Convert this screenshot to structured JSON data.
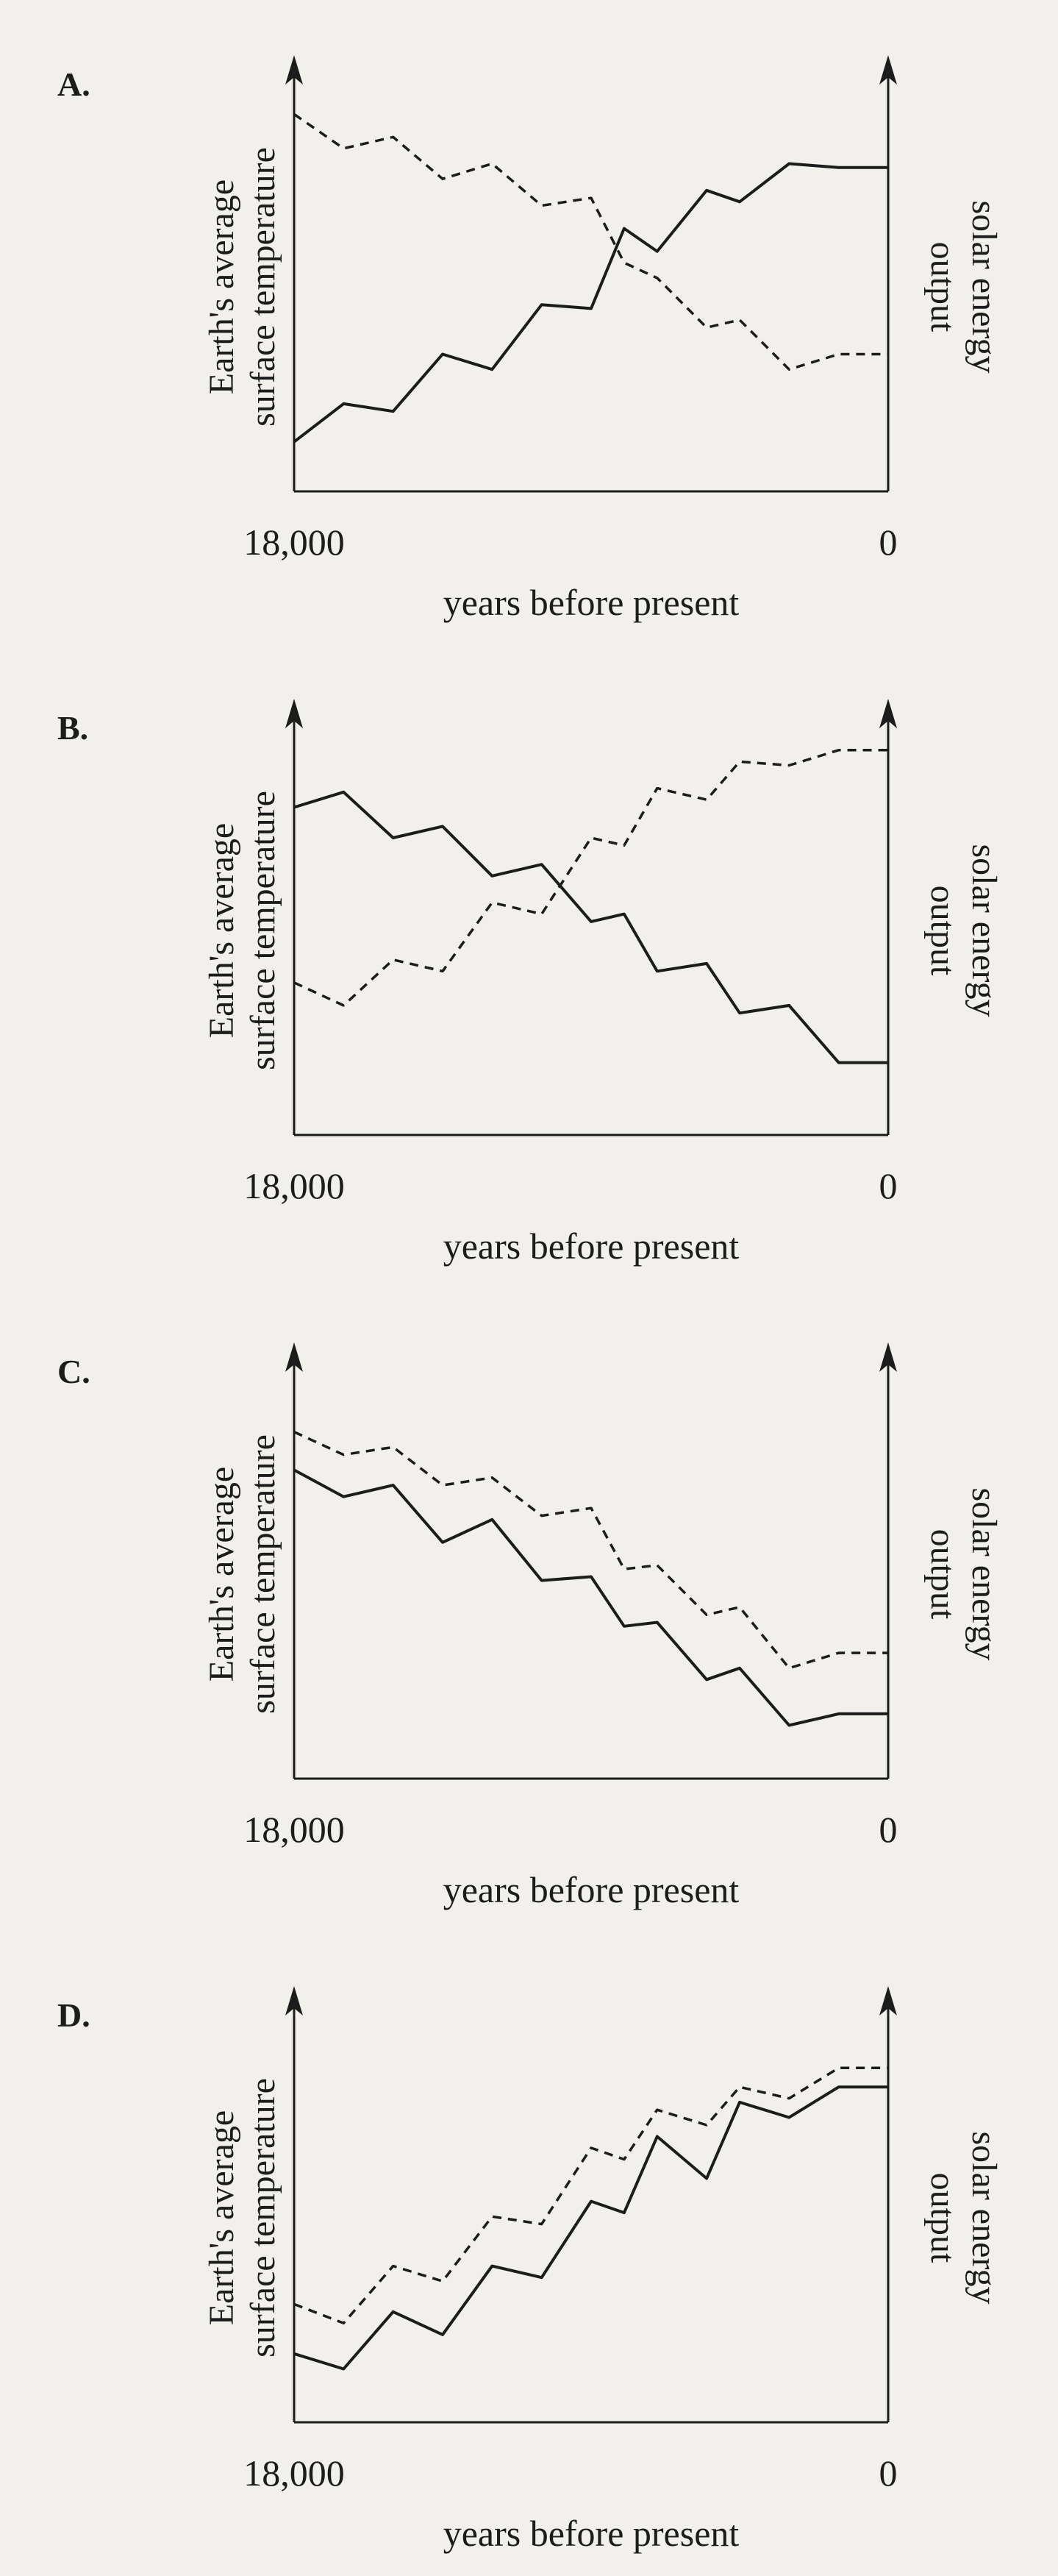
{
  "chart_data": [
    {
      "type": "line",
      "option_label": "A.",
      "ylabel_left": [
        "Earth's average",
        "surface temperature"
      ],
      "ylabel_right": [
        "solar energy",
        "output"
      ],
      "xlabel": "years before present",
      "x_tick_labels": [
        "18,000",
        "0"
      ],
      "x": [
        18000,
        16500,
        15000,
        13500,
        12000,
        10500,
        9000,
        8000,
        7000,
        5500,
        4500,
        3000,
        1500,
        0
      ],
      "xlim": [
        18000,
        0
      ],
      "ylim": [
        0,
        10
      ],
      "series": [
        {
          "axis": "left",
          "line_style": "solid",
          "values": [
            1.3,
            2.3,
            2.1,
            3.6,
            3.2,
            4.9,
            4.8,
            6.9,
            6.3,
            7.9,
            7.6,
            8.6,
            8.5,
            8.5
          ]
        },
        {
          "axis": "right",
          "line_style": "dashed",
          "values": [
            9.9,
            9.0,
            9.3,
            8.2,
            8.6,
            7.5,
            7.7,
            6.0,
            5.6,
            4.3,
            4.5,
            3.2,
            3.6,
            3.6
          ]
        }
      ]
    },
    {
      "type": "line",
      "option_label": "B.",
      "ylabel_left": [
        "Earth's average",
        "surface temperature"
      ],
      "ylabel_right": [
        "solar energy",
        "output"
      ],
      "xlabel": "years before present",
      "x_tick_labels": [
        "18,000",
        "0"
      ],
      "x": [
        18000,
        16500,
        15000,
        13500,
        12000,
        10500,
        9000,
        8000,
        7000,
        5500,
        4500,
        3000,
        1500,
        0
      ],
      "xlim": [
        18000,
        0
      ],
      "ylim": [
        0,
        10
      ],
      "series": [
        {
          "axis": "left",
          "line_style": "solid",
          "values": [
            8.6,
            9.0,
            7.8,
            8.1,
            6.8,
            7.1,
            5.6,
            5.8,
            4.3,
            4.5,
            3.2,
            3.4,
            1.9,
            1.9
          ]
        },
        {
          "axis": "right",
          "line_style": "dashed",
          "values": [
            4.0,
            3.4,
            4.6,
            4.3,
            6.1,
            5.8,
            7.8,
            7.6,
            9.1,
            8.8,
            9.8,
            9.7,
            10.1,
            10.1
          ]
        }
      ]
    },
    {
      "type": "line",
      "option_label": "C.",
      "ylabel_left": [
        "Earth's average",
        "surface temperature"
      ],
      "ylabel_right": [
        "solar energy",
        "output"
      ],
      "xlabel": "years before present",
      "x_tick_labels": [
        "18,000",
        "0"
      ],
      "x": [
        18000,
        16500,
        15000,
        13500,
        12000,
        10500,
        9000,
        8000,
        7000,
        5500,
        4500,
        3000,
        1500,
        0
      ],
      "xlim": [
        18000,
        0
      ],
      "ylim": [
        0,
        10
      ],
      "series": [
        {
          "axis": "left",
          "line_style": "solid",
          "values": [
            8.1,
            7.4,
            7.7,
            6.2,
            6.8,
            5.2,
            5.3,
            4.0,
            4.1,
            2.6,
            2.9,
            1.4,
            1.7,
            1.7
          ]
        },
        {
          "axis": "right",
          "line_style": "dashed",
          "values": [
            9.1,
            8.5,
            8.7,
            7.7,
            7.9,
            6.9,
            7.1,
            5.5,
            5.6,
            4.3,
            4.5,
            2.9,
            3.3,
            3.3
          ]
        }
      ]
    },
    {
      "type": "line",
      "option_label": "D.",
      "ylabel_left": [
        "Earth's average",
        "surface temperature"
      ],
      "ylabel_right": [
        "solar energy",
        "output"
      ],
      "xlabel": "years before present",
      "x_tick_labels": [
        "18,000",
        "0"
      ],
      "x": [
        18000,
        16500,
        15000,
        13500,
        12000,
        10500,
        9000,
        8000,
        7000,
        5500,
        4500,
        3000,
        1500,
        0
      ],
      "xlim": [
        18000,
        0
      ],
      "ylim": [
        0,
        10
      ],
      "series": [
        {
          "axis": "left",
          "line_style": "solid",
          "values": [
            1.8,
            1.4,
            2.9,
            2.3,
            4.1,
            3.8,
            5.8,
            5.5,
            7.5,
            6.4,
            8.4,
            8.0,
            8.8,
            8.8
          ]
        },
        {
          "axis": "right",
          "line_style": "dashed",
          "values": [
            3.1,
            2.6,
            4.1,
            3.7,
            5.4,
            5.2,
            7.2,
            6.9,
            8.2,
            7.8,
            8.8,
            8.5,
            9.3,
            9.3
          ]
        }
      ]
    }
  ],
  "style": {
    "line_color": "#1c1c1c",
    "background": "#f1f0ec"
  }
}
